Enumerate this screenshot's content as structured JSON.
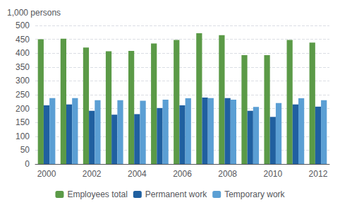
{
  "chart_data": {
    "type": "bar",
    "ylabel": "1,000 persons",
    "categories": [
      "2000",
      null,
      "2002",
      null,
      "2004",
      null,
      "2006",
      null,
      "2008",
      null,
      "2010",
      null,
      "2012"
    ],
    "series": [
      {
        "name": "Employees total",
        "color": "#5b9a47",
        "values": [
          450,
          452,
          420,
          407,
          408,
          435,
          448,
          472,
          465,
          393,
          393,
          448,
          438
        ]
      },
      {
        "name": "Permanent work",
        "color": "#2060a0",
        "values": [
          212,
          215,
          192,
          178,
          180,
          202,
          212,
          240,
          238,
          192,
          170,
          215,
          207
        ]
      },
      {
        "name": "Temporary work",
        "color": "#5b9fd4",
        "values": [
          238,
          238,
          230,
          230,
          228,
          232,
          237,
          238,
          232,
          206,
          220,
          237,
          230
        ]
      }
    ],
    "ylim": [
      0,
      500
    ],
    "yticks": [
      0,
      50,
      100,
      150,
      200,
      250,
      300,
      350,
      400,
      450,
      500
    ],
    "grid": true,
    "legend": "bottom"
  }
}
